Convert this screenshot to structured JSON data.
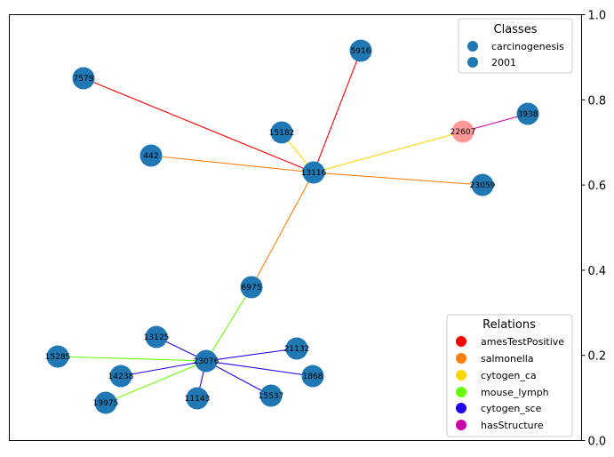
{
  "axis": {
    "ticks": [
      "0.0",
      "0.2",
      "0.4",
      "0.6",
      "0.8",
      "1.0"
    ]
  },
  "legend_classes": {
    "title": "Classes",
    "items": [
      {
        "label": "carcinogenesis",
        "color": "#1f77b4"
      },
      {
        "label": "2001",
        "color": "#1f77b4"
      }
    ]
  },
  "legend_relations": {
    "title": "Relations",
    "items": [
      {
        "label": "amesTestPositive",
        "color": "#ff0000"
      },
      {
        "label": "salmonella",
        "color": "#ff7f0e"
      },
      {
        "label": "cytogen_ca",
        "color": "#ffd700"
      },
      {
        "label": "mouse_lymph",
        "color": "#66ff00"
      },
      {
        "label": "cytogen_sce",
        "color": "#2200ee"
      },
      {
        "label": "hasStructure",
        "color": "#cc00aa"
      }
    ]
  },
  "nodes": [
    {
      "id": "5916",
      "color": "#1f77b4"
    },
    {
      "id": "7579",
      "color": "#1f77b4"
    },
    {
      "id": "3938",
      "color": "#1f77b4"
    },
    {
      "id": "15182",
      "color": "#1f77b4"
    },
    {
      "id": "22607",
      "color": "#ff9896"
    },
    {
      "id": "442",
      "color": "#1f77b4"
    },
    {
      "id": "13116",
      "color": "#1f77b4"
    },
    {
      "id": "23059",
      "color": "#1f77b4"
    },
    {
      "id": "6975",
      "color": "#1f77b4"
    },
    {
      "id": "13125",
      "color": "#1f77b4"
    },
    {
      "id": "21132",
      "color": "#1f77b4"
    },
    {
      "id": "15285",
      "color": "#1f77b4"
    },
    {
      "id": "23076",
      "color": "#1f77b4"
    },
    {
      "id": "14238",
      "color": "#1f77b4"
    },
    {
      "id": "1868",
      "color": "#1f77b4"
    },
    {
      "id": "15537",
      "color": "#1f77b4"
    },
    {
      "id": "11143",
      "color": "#1f77b4"
    },
    {
      "id": "19975",
      "color": "#1f77b4"
    }
  ],
  "edges": [
    {
      "source": "7579",
      "target": "13116",
      "relation": "amesTestPositive"
    },
    {
      "source": "5916",
      "target": "13116",
      "relation": "amesTestPositive"
    },
    {
      "source": "15182",
      "target": "13116",
      "relation": "cytogen_ca"
    },
    {
      "source": "22607",
      "target": "13116",
      "relation": "cytogen_ca"
    },
    {
      "source": "22607",
      "target": "3938",
      "relation": "hasStructure"
    },
    {
      "source": "442",
      "target": "13116",
      "relation": "salmonella"
    },
    {
      "source": "13116",
      "target": "23059",
      "relation": "salmonella"
    },
    {
      "source": "13116",
      "target": "6975",
      "relation": "salmonella"
    },
    {
      "source": "6975",
      "target": "23076",
      "relation": "mouse_lymph"
    },
    {
      "source": "15285",
      "target": "23076",
      "relation": "mouse_lymph"
    },
    {
      "source": "19975",
      "target": "23076",
      "relation": "mouse_lymph"
    },
    {
      "source": "13125",
      "target": "23076",
      "relation": "cytogen_sce"
    },
    {
      "source": "14238",
      "target": "23076",
      "relation": "cytogen_sce"
    },
    {
      "source": "11143",
      "target": "23076",
      "relation": "cytogen_sce"
    },
    {
      "source": "21132",
      "target": "23076",
      "relation": "cytogen_sce"
    },
    {
      "source": "1868",
      "target": "23076",
      "relation": "cytogen_sce"
    },
    {
      "source": "15537",
      "target": "23076",
      "relation": "cytogen_sce"
    }
  ]
}
